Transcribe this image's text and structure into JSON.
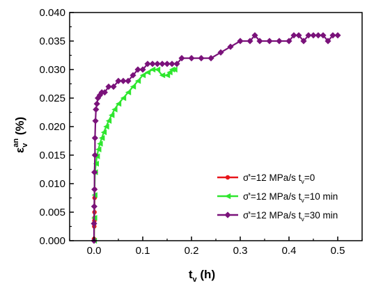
{
  "chart_data": {
    "type": "scatter",
    "xlabel": {
      "main": "t",
      "sub": "v",
      "tail": " (h)"
    },
    "ylabel": {
      "main": "ε",
      "sub": "v",
      "sup": "an",
      "tail": " (%)"
    },
    "xlim": [
      -0.05,
      0.55
    ],
    "ylim": [
      0.0,
      0.04
    ],
    "x_ticks": [
      "0.0",
      "0.1",
      "0.2",
      "0.3",
      "0.4",
      "0.5"
    ],
    "y_ticks": [
      "0.000",
      "0.005",
      "0.010",
      "0.015",
      "0.020",
      "0.025",
      "0.030",
      "0.035",
      "0.040"
    ],
    "grid": false,
    "legend_position": "bottom-right",
    "series": [
      {
        "name": "σ̇'=12 MPa/s t_v=0",
        "legend": {
          "pre": "σ̇'=12 MPa/s t",
          "sub": "v",
          "post": "=0"
        },
        "color": "#e8141a",
        "marker": "circle",
        "points": [
          [
            0.0,
            0.0
          ],
          [
            0.0,
            0.0003
          ],
          [
            0.0005,
            0.0025
          ],
          [
            0.0005,
            0.003
          ],
          [
            0.0008,
            0.0035
          ],
          [
            0.001,
            0.004
          ],
          [
            0.001,
            0.005
          ],
          [
            0.0012,
            0.0075
          ],
          [
            0.0015,
            0.009
          ]
        ]
      },
      {
        "name": "σ̇'=12 MPa/s t_v=10 min",
        "legend": {
          "pre": "σ̇'=12 MPa/s t",
          "sub": "v",
          "post": "=10 min"
        },
        "color": "#2ee62e",
        "marker": "triangle-left",
        "points": [
          [
            0.0,
            0.0
          ],
          [
            0.0005,
            0.004
          ],
          [
            0.001,
            0.008
          ],
          [
            0.002,
            0.012
          ],
          [
            0.004,
            0.0135
          ],
          [
            0.006,
            0.0148
          ],
          [
            0.009,
            0.016
          ],
          [
            0.012,
            0.017
          ],
          [
            0.016,
            0.018
          ],
          [
            0.02,
            0.019
          ],
          [
            0.025,
            0.02
          ],
          [
            0.03,
            0.021
          ],
          [
            0.036,
            0.022
          ],
          [
            0.042,
            0.023
          ],
          [
            0.05,
            0.024
          ],
          [
            0.06,
            0.025
          ],
          [
            0.07,
            0.026
          ],
          [
            0.08,
            0.027
          ],
          [
            0.09,
            0.028
          ],
          [
            0.1,
            0.029
          ],
          [
            0.11,
            0.0295
          ],
          [
            0.12,
            0.03
          ],
          [
            0.13,
            0.03
          ],
          [
            0.14,
            0.029
          ],
          [
            0.15,
            0.029
          ],
          [
            0.155,
            0.0295
          ],
          [
            0.16,
            0.03
          ],
          [
            0.165,
            0.03
          ]
        ]
      },
      {
        "name": "σ̇'=12 MPa/s t_v=30 min",
        "legend": {
          "pre": "σ̇'=12 MPa/s t",
          "sub": "v",
          "post": "=30 min"
        },
        "color": "#7a127a",
        "marker": "diamond",
        "points": [
          [
            0.0,
            0.0
          ],
          [
            0.0,
            0.003
          ],
          [
            0.0005,
            0.006
          ],
          [
            0.001,
            0.009
          ],
          [
            0.001,
            0.012
          ],
          [
            0.002,
            0.015
          ],
          [
            0.002,
            0.018
          ],
          [
            0.003,
            0.021
          ],
          [
            0.004,
            0.023
          ],
          [
            0.006,
            0.024
          ],
          [
            0.008,
            0.025
          ],
          [
            0.012,
            0.0255
          ],
          [
            0.016,
            0.026
          ],
          [
            0.022,
            0.026
          ],
          [
            0.03,
            0.027
          ],
          [
            0.04,
            0.027
          ],
          [
            0.05,
            0.028
          ],
          [
            0.06,
            0.028
          ],
          [
            0.07,
            0.028
          ],
          [
            0.08,
            0.029
          ],
          [
            0.09,
            0.03
          ],
          [
            0.1,
            0.03
          ],
          [
            0.11,
            0.031
          ],
          [
            0.12,
            0.031
          ],
          [
            0.13,
            0.031
          ],
          [
            0.14,
            0.031
          ],
          [
            0.15,
            0.031
          ],
          [
            0.16,
            0.031
          ],
          [
            0.17,
            0.031
          ],
          [
            0.18,
            0.032
          ],
          [
            0.2,
            0.032
          ],
          [
            0.22,
            0.032
          ],
          [
            0.24,
            0.032
          ],
          [
            0.26,
            0.033
          ],
          [
            0.28,
            0.034
          ],
          [
            0.3,
            0.035
          ],
          [
            0.32,
            0.035
          ],
          [
            0.33,
            0.036
          ],
          [
            0.34,
            0.035
          ],
          [
            0.36,
            0.035
          ],
          [
            0.38,
            0.035
          ],
          [
            0.4,
            0.035
          ],
          [
            0.41,
            0.036
          ],
          [
            0.42,
            0.036
          ],
          [
            0.43,
            0.035
          ],
          [
            0.44,
            0.036
          ],
          [
            0.45,
            0.036
          ],
          [
            0.46,
            0.036
          ],
          [
            0.47,
            0.036
          ],
          [
            0.48,
            0.035
          ],
          [
            0.49,
            0.036
          ],
          [
            0.5,
            0.036
          ]
        ]
      }
    ]
  }
}
